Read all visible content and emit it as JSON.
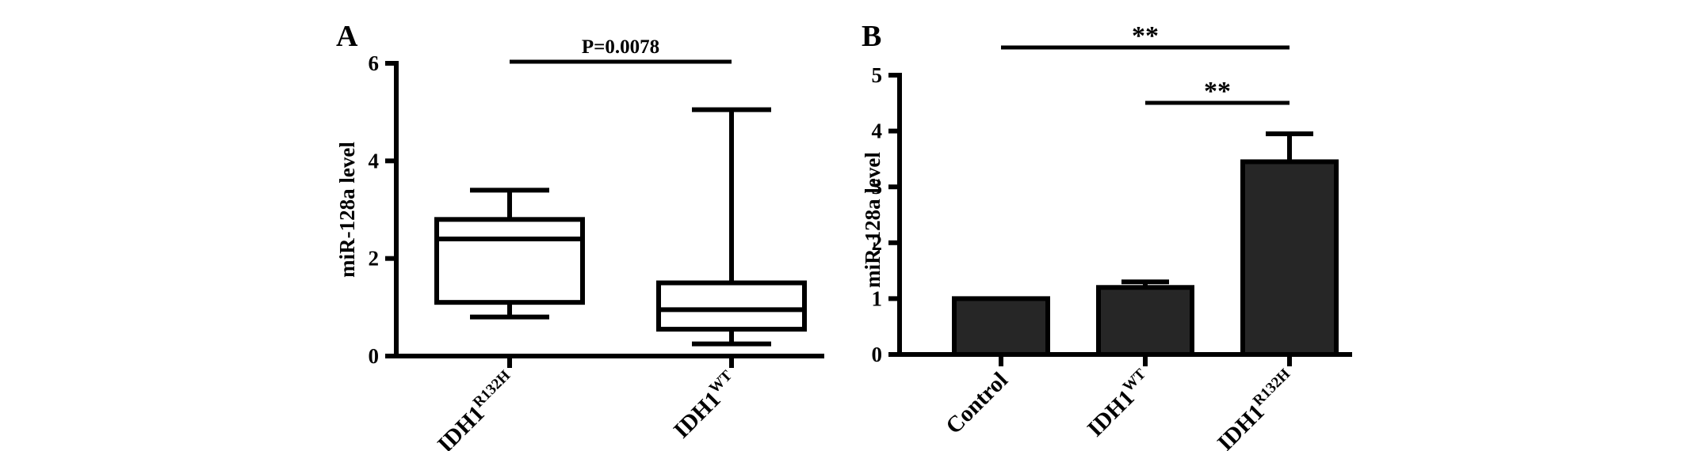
{
  "chart_data": [
    {
      "type": "box",
      "panel_label": "A",
      "title": "",
      "xlabel": "",
      "ylabel": "miR-128a level",
      "ylim": [
        0,
        6
      ],
      "yticks": [
        0,
        2,
        4,
        6
      ],
      "categories": [
        {
          "base": "IDH1",
          "sup": "R132H"
        },
        {
          "base": "IDH1",
          "sup": "WT"
        }
      ],
      "boxes": [
        {
          "min": 0.8,
          "q1": 1.1,
          "median": 2.4,
          "q3": 2.8,
          "max": 3.4
        },
        {
          "min": 0.25,
          "q1": 0.55,
          "median": 0.95,
          "q3": 1.5,
          "max": 5.05
        }
      ],
      "annotations": [
        {
          "text": "P=0.0078",
          "from": 0,
          "to": 1
        }
      ],
      "grid": false
    },
    {
      "type": "bar",
      "panel_label": "B",
      "title": "",
      "xlabel": "",
      "ylabel": "miR-128a level",
      "ylim": [
        0,
        5
      ],
      "yticks": [
        0,
        1,
        2,
        3,
        4,
        5
      ],
      "categories": [
        {
          "base": "Control",
          "sup": ""
        },
        {
          "base": "IDH1",
          "sup": "WT"
        },
        {
          "base": "IDH1",
          "sup": "R132H"
        }
      ],
      "values": [
        1.0,
        1.2,
        3.45
      ],
      "errors": [
        0,
        0.1,
        0.5
      ],
      "bar_color": "#262626",
      "annotations": [
        {
          "text": "**",
          "from": 0,
          "to": 2
        },
        {
          "text": "**",
          "from": 1,
          "to": 2
        }
      ],
      "grid": false
    }
  ]
}
